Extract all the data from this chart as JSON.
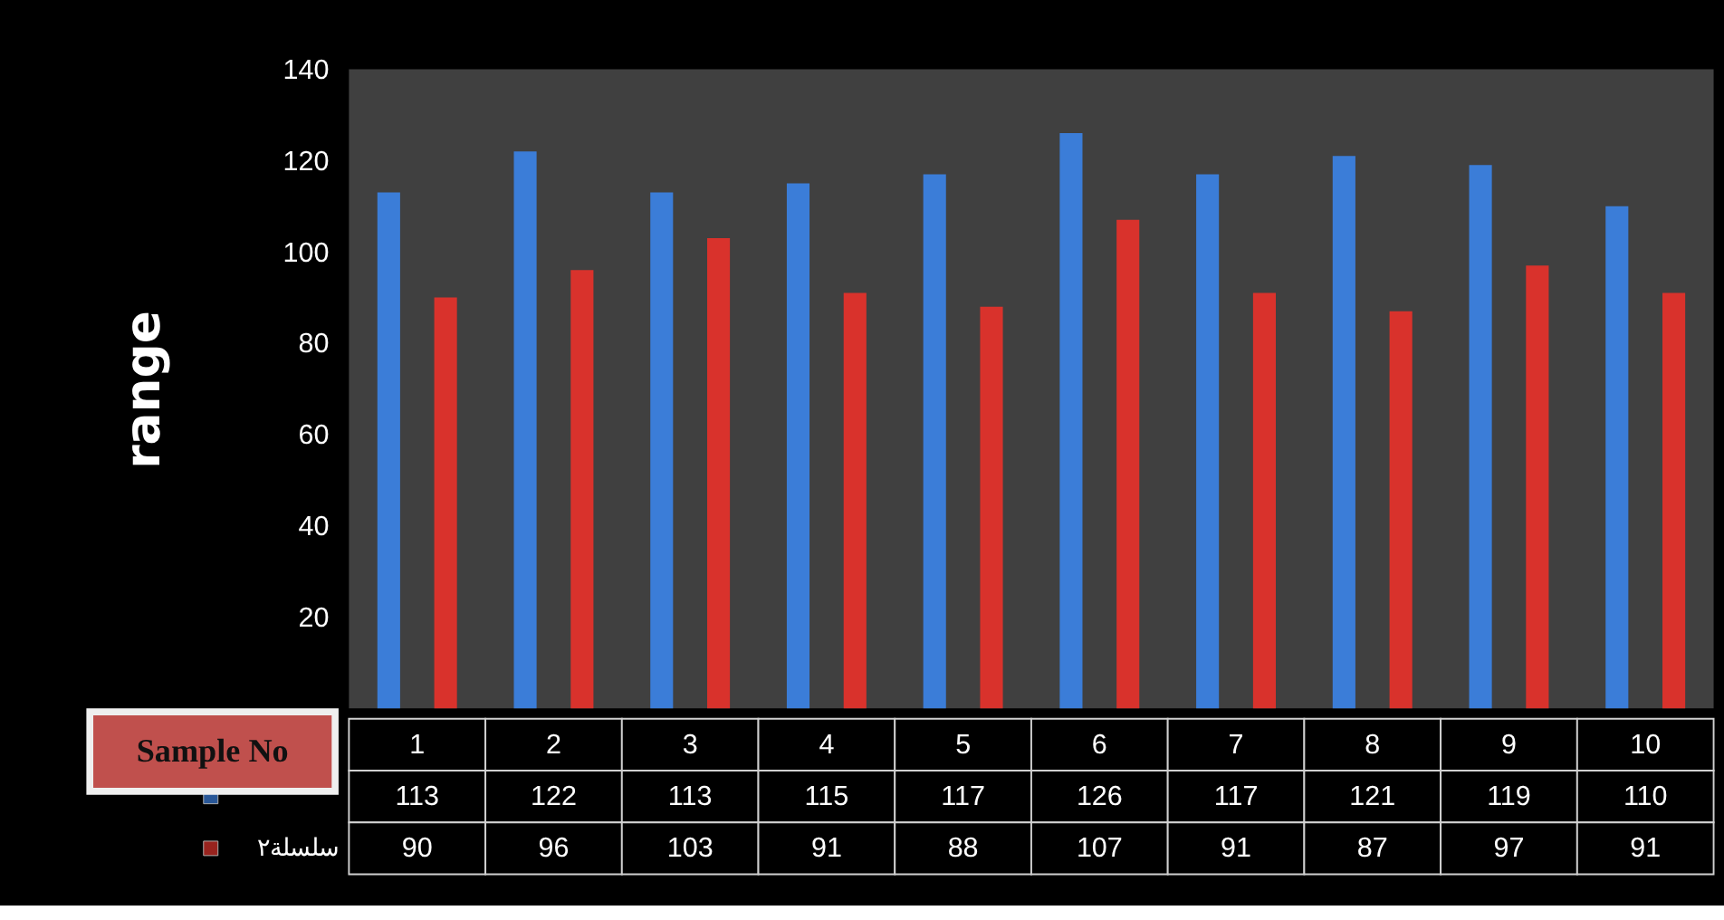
{
  "chart_data": {
    "type": "bar",
    "ylabel": "range",
    "xlabel": "Sample No",
    "categories": [
      "1",
      "2",
      "3",
      "4",
      "5",
      "6",
      "7",
      "8",
      "9",
      "10"
    ],
    "series": [
      {
        "color": "#3b7dd8",
        "values": [
          113,
          122,
          113,
          115,
          117,
          126,
          117,
          121,
          119,
          110
        ]
      },
      {
        "name": "سلسلة٢",
        "color": "#d9322c",
        "values": [
          90,
          96,
          103,
          91,
          88,
          107,
          91,
          87,
          97,
          91
        ]
      }
    ],
    "ylim": [
      0,
      140
    ],
    "yticks": [
      20,
      40,
      60,
      80,
      100,
      120,
      140
    ],
    "grid": false,
    "data_labels": true,
    "tick_labels": "y"
  }
}
